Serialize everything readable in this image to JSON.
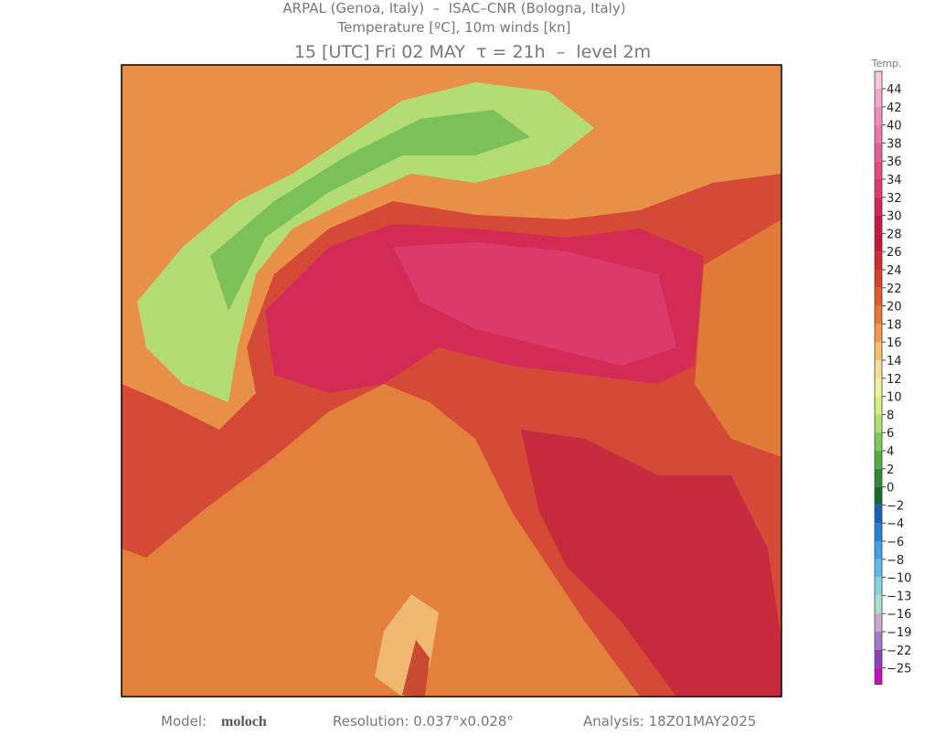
{
  "header": {
    "line1": "ARPAL (Genoa, Italy)  –  ISAC–CNR (Bologna, Italy)",
    "line2": "Temperature [ºC], 10m winds [kn]",
    "line3": "15 [UTC] Fri 02 MAY  τ = 21h  –  level 2m"
  },
  "colorbar": {
    "title": "Temp.",
    "labels": [
      "44",
      "42",
      "40",
      "38",
      "36",
      "34",
      "32",
      "30",
      "28",
      "26",
      "24",
      "22",
      "20",
      "18",
      "16",
      "14",
      "12",
      "10",
      "8",
      "6",
      "4",
      "2",
      "0",
      "−2",
      "−4",
      "−6",
      "−8",
      "−10",
      "−13",
      "−16",
      "−19",
      "−22",
      "−25"
    ],
    "colors": [
      "#f6c8dc",
      "#f2aac8",
      "#ee90b8",
      "#ea78a8",
      "#e66098",
      "#e04c80",
      "#dc3c6c",
      "#d4245a",
      "#c81446",
      "#c4143a",
      "#d02a32",
      "#d8402c",
      "#e05a2a",
      "#e8783a",
      "#f09a4c",
      "#f4bc70",
      "#f6dc98",
      "#eef2a0",
      "#d4f080",
      "#aee070",
      "#80c858",
      "#54ac44",
      "#2e8a34",
      "#1a6a2c",
      "#1460b8",
      "#2080dc",
      "#40a0ec",
      "#60bce8",
      "#88d4dc",
      "#a8e0d0",
      "#c8a8cc",
      "#a878c4",
      "#9040b4",
      "#c010c0"
    ]
  },
  "footer": {
    "model_label": "Model:",
    "model": "moloch",
    "resolution": "Resolution: 0.037°x0.028°",
    "analysis": "Analysis: 18Z01MAY2025"
  }
}
